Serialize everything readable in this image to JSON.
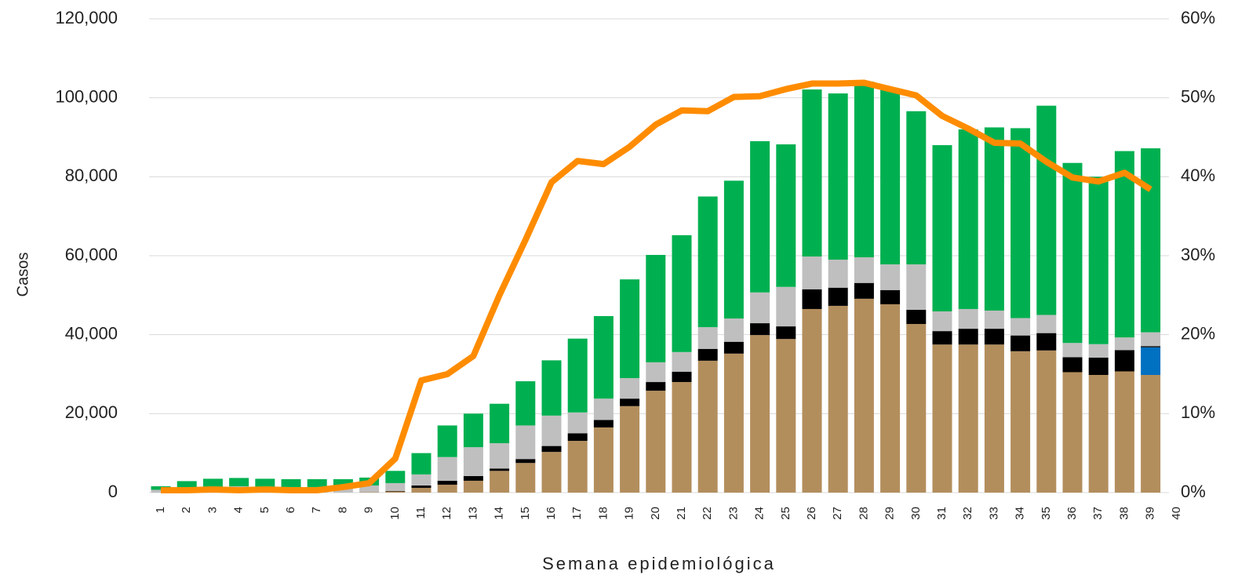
{
  "chart_data": {
    "type": "bar-line",
    "xlabel": "Semana epidemiológica",
    "ylabel": "Casos",
    "categories": [
      "1",
      "2",
      "3",
      "4",
      "5",
      "6",
      "7",
      "8",
      "9",
      "10",
      "11",
      "12",
      "13",
      "14",
      "15",
      "16",
      "17",
      "18",
      "19",
      "20",
      "21",
      "22",
      "23",
      "24",
      "25",
      "26",
      "27",
      "28",
      "29",
      "30",
      "31",
      "32",
      "33",
      "34",
      "35",
      "36",
      "37",
      "38",
      "39",
      "40"
    ],
    "series": [
      {
        "color": "#b38e5d",
        "values": [
          0,
          0,
          0,
          0,
          0,
          0,
          0,
          0,
          100,
          300,
          1200,
          2000,
          3000,
          5500,
          7500,
          10300,
          13100,
          16500,
          21900,
          25800,
          28000,
          33400,
          35200,
          39900,
          38900,
          46500,
          47300,
          49100,
          47700,
          42700,
          37500,
          37500,
          37500,
          35800,
          36000,
          30500,
          29800,
          30700,
          29800,
          null
        ]
      },
      {
        "color": "#0070c0",
        "values": [
          0,
          0,
          0,
          0,
          0,
          0,
          0,
          0,
          0,
          0,
          0,
          0,
          0,
          0,
          0,
          0,
          0,
          0,
          0,
          0,
          0,
          0,
          0,
          0,
          0,
          0,
          0,
          0,
          0,
          0,
          0,
          0,
          0,
          0,
          0,
          0,
          0,
          0,
          7000,
          null
        ]
      },
      {
        "color": "#000000",
        "values": [
          0,
          0,
          0,
          0,
          0,
          0,
          0,
          0,
          0,
          100,
          600,
          1000,
          1200,
          600,
          1000,
          1500,
          1900,
          1900,
          1900,
          2200,
          2600,
          3000,
          3000,
          3000,
          3200,
          5000,
          4600,
          4000,
          3600,
          3600,
          3400,
          4000,
          4000,
          4000,
          4400,
          3800,
          4400,
          5400,
          300,
          null
        ]
      },
      {
        "color": "#bfbfbf",
        "values": [
          700,
          1200,
          1500,
          1600,
          1500,
          1400,
          1400,
          1400,
          1700,
          2000,
          2800,
          6000,
          7300,
          6400,
          8500,
          7700,
          5300,
          5400,
          5200,
          5000,
          5000,
          5500,
          5900,
          7800,
          10000,
          8300,
          7100,
          6500,
          6500,
          11500,
          5000,
          5000,
          4600,
          4400,
          4600,
          3600,
          3400,
          3200,
          3500,
          null
        ]
      },
      {
        "color": "#00b050",
        "values": [
          900,
          1700,
          2000,
          2100,
          2000,
          2000,
          2000,
          2000,
          2000,
          3100,
          5400,
          8000,
          8500,
          10000,
          11200,
          14000,
          18700,
          20900,
          25000,
          27200,
          29600,
          33100,
          34900,
          38300,
          36100,
          42300,
          42100,
          44500,
          44500,
          38800,
          42100,
          45500,
          46400,
          48100,
          53000,
          45600,
          42400,
          47200,
          46600,
          null
        ]
      },
      {
        "color": "#ff8c00",
        "axis": "y2",
        "type": "line",
        "values": [
          0.3,
          0.3,
          0.4,
          0.3,
          0.4,
          0.3,
          0.3,
          0.7,
          1.2,
          4.3,
          14.2,
          15,
          17.3,
          25,
          32,
          39.3,
          42,
          41.6,
          43.8,
          46.6,
          48.4,
          48.3,
          50.1,
          50.2,
          51.1,
          51.8,
          51.8,
          51.9,
          51.1,
          50.3,
          47.7,
          46.1,
          44.3,
          44.2,
          41.9,
          39.9,
          39.4,
          40.5,
          38.4,
          null
        ]
      }
    ],
    "ylim": [
      0,
      120000
    ],
    "yticks": [
      0,
      {
        "value": 20000,
        "label": "20,000"
      },
      {
        "value": 40000,
        "label": "40,000"
      },
      {
        "value": 60000,
        "label": "60,000"
      },
      {
        "value": 80000,
        "label": "80,000"
      },
      {
        "value": 100000,
        "label": "100,000"
      },
      {
        "value": 120000,
        "label": "120,000"
      }
    ],
    "y2lim": [
      0,
      60
    ],
    "y2ticks": [
      {
        "value": 0,
        "label": "0%"
      },
      {
        "value": 10,
        "label": "10%"
      },
      {
        "value": 20,
        "label": "20%"
      },
      {
        "value": 30,
        "label": "30%"
      },
      {
        "value": 40,
        "label": "40%"
      },
      {
        "value": 50,
        "label": "50%"
      },
      {
        "value": 60,
        "label": "60%"
      }
    ],
    "grid": true
  }
}
